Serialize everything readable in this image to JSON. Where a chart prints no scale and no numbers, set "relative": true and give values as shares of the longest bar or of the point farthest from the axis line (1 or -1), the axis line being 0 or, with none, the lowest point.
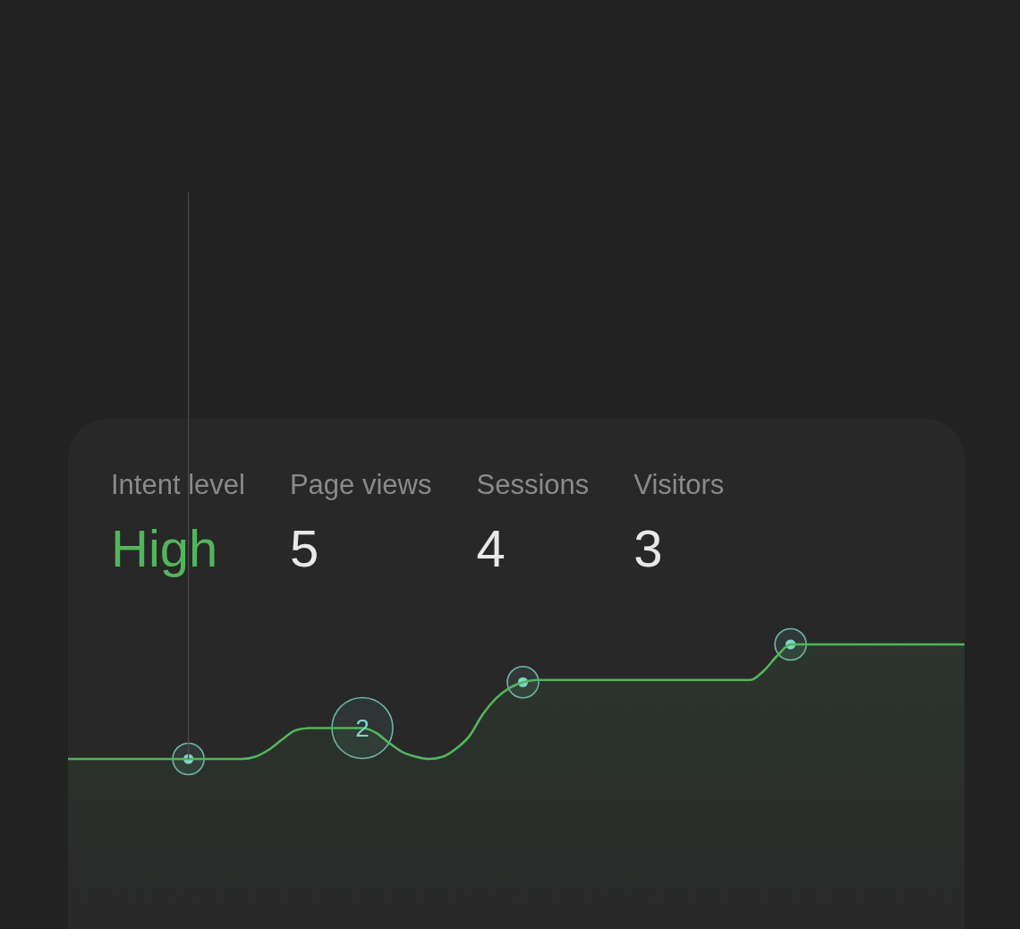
{
  "chart_data": {
    "type": "area",
    "relative": true,
    "categories": [
      null,
      null,
      null,
      null,
      null,
      null,
      null,
      null,
      null,
      null,
      null,
      null,
      null,
      null,
      null,
      null,
      null,
      null,
      null,
      null,
      null,
      null,
      null,
      null,
      null,
      null,
      null,
      null,
      null,
      null,
      null,
      null,
      null,
      null,
      null,
      null,
      null,
      null,
      null,
      null,
      null,
      null,
      null,
      null,
      null,
      null,
      null,
      null,
      null,
      null,
      null,
      null,
      null,
      null,
      null,
      null,
      null,
      null,
      null,
      null,
      null,
      null,
      null,
      null,
      null,
      null,
      null,
      null
    ],
    "series": [
      {
        "color": "#52b55c",
        "values": [
          0,
          0,
          0,
          0,
          0,
          0,
          0,
          0,
          0,
          0,
          0,
          0,
          0,
          0,
          0.02,
          0.08,
          0.17,
          0.25,
          0.27,
          0.27,
          0.27,
          0.27,
          0.27,
          0.23,
          0.14,
          0.06,
          0.02,
          0,
          0.02,
          0.09,
          0.2,
          0.39,
          0.53,
          0.62,
          0.67,
          0.69,
          0.69,
          0.69,
          0.69,
          0.69,
          0.69,
          0.69,
          0.69,
          0.69,
          0.69,
          0.69,
          0.69,
          0.69,
          0.69,
          0.69,
          0.69,
          0.69,
          0.77,
          0.9,
          1,
          1,
          1,
          1,
          1,
          1,
          1,
          1,
          1,
          1,
          1,
          1,
          1,
          1
        ]
      }
    ],
    "annotations": [
      "Intent level",
      "High",
      "Page views",
      "5",
      "Sessions",
      "4",
      "Visitors",
      "3",
      {
        "text": "2",
        "y": 0.27
      }
    ]
  }
}
